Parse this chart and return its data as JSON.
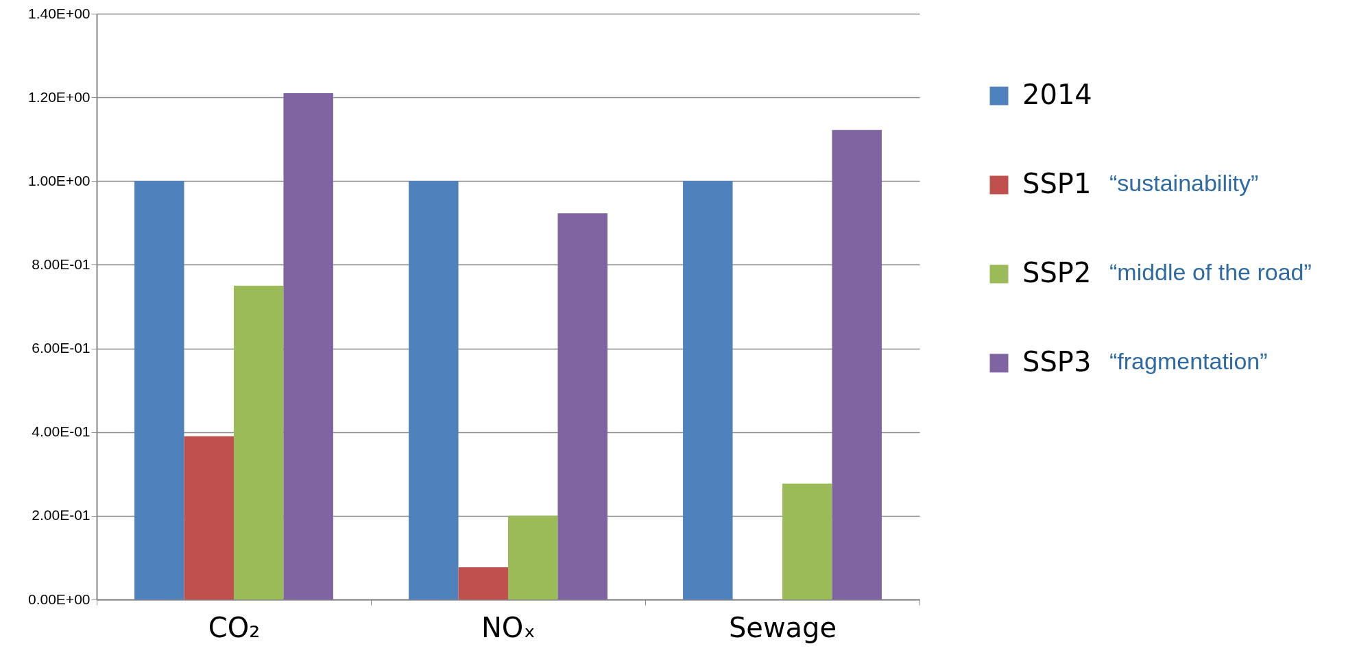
{
  "chart_data": {
    "type": "bar",
    "categories": [
      "CO₂",
      "NOₓ",
      "Sewage"
    ],
    "series": [
      {
        "name": "2014",
        "color": "#4f81bd",
        "values": [
          1.0,
          1.0,
          1.0
        ]
      },
      {
        "name": "SSP1",
        "color": "#c0504d",
        "values": [
          0.39,
          0.077,
          null
        ]
      },
      {
        "name": "SSP2",
        "color": "#9bbb59",
        "values": [
          0.75,
          0.2,
          0.277
        ]
      },
      {
        "name": "SSP3",
        "color": "#8064a2",
        "values": [
          1.21,
          0.923,
          1.122
        ]
      }
    ],
    "ylim": [
      0,
      1.4
    ],
    "yticks": [
      {
        "value": 0,
        "label": "0.00E+00"
      },
      {
        "value": 0.2,
        "label": "2.00E-01"
      },
      {
        "value": 0.4,
        "label": "4.00E-01"
      },
      {
        "value": 0.6,
        "label": "6.00E-01"
      },
      {
        "value": 0.8,
        "label": "8.00E-01"
      },
      {
        "value": 1.0,
        "label": "1.00E+00"
      },
      {
        "value": 1.2,
        "label": "1.20E+00"
      },
      {
        "value": 1.4,
        "label": "1.40E+00"
      }
    ],
    "grid": "y",
    "legend": "right",
    "annotations": [
      "“sustainability”",
      "“middle of the road”",
      "“fragmentation”"
    ]
  }
}
